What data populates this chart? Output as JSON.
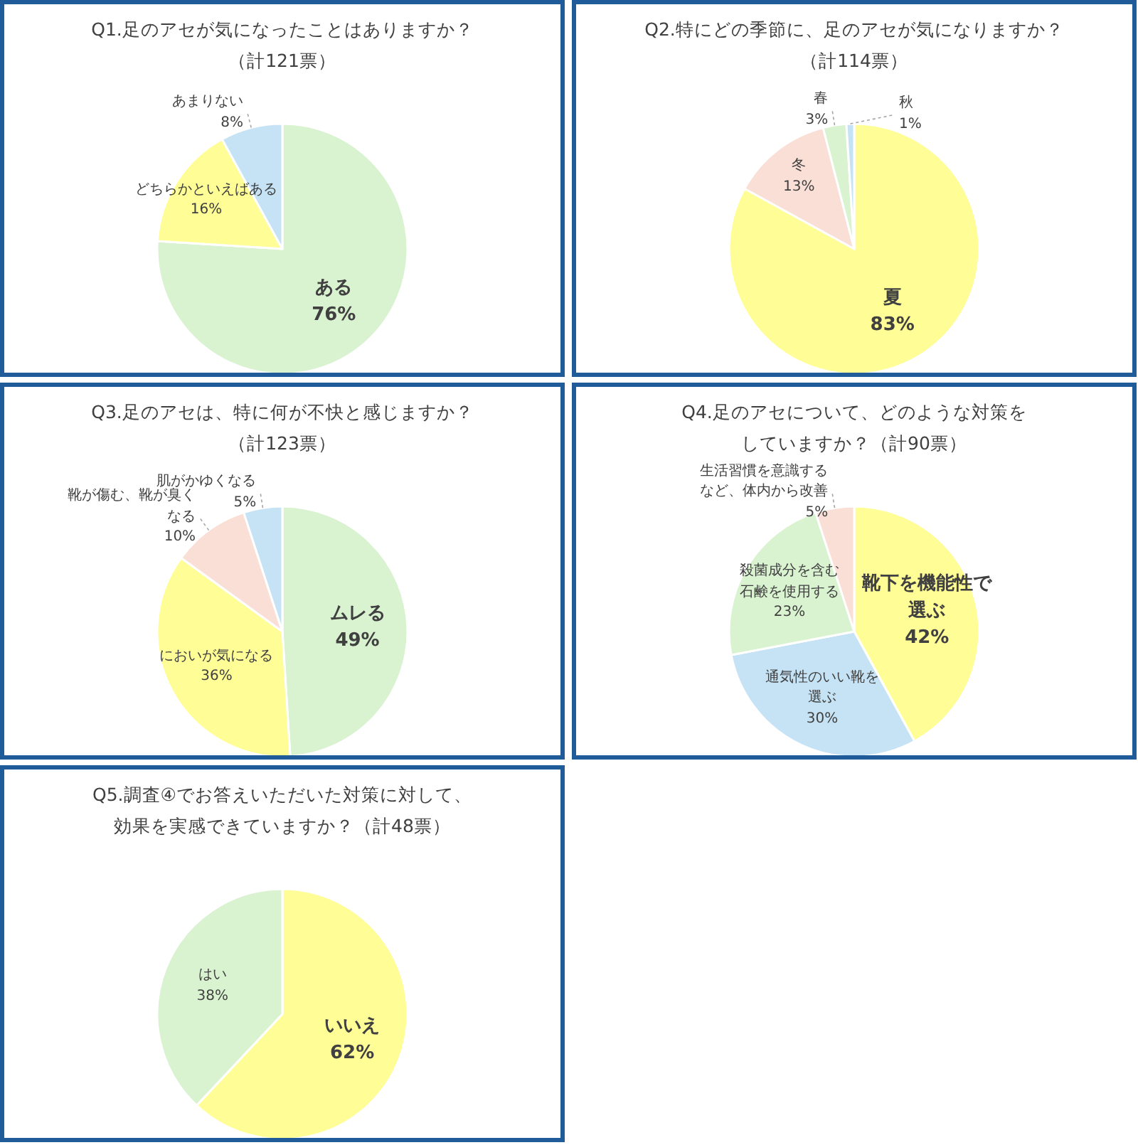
{
  "chart_data": [
    {
      "type": "pie",
      "title": "Q1.足のアセが気になったことはありますか？",
      "subtitle": "（計121票）",
      "categories": [
        "ある",
        "どちらかといえばある",
        "あまりない"
      ],
      "values": [
        76,
        16,
        8
      ],
      "value_labels": [
        "76%",
        "16%",
        "8%"
      ],
      "colors": [
        "#d9f2d0",
        "#fffd96",
        "#c5e3f5"
      ]
    },
    {
      "type": "pie",
      "title": "Q2.特にどの季節に、足のアセが気になりますか？",
      "subtitle": "（計114票）",
      "categories": [
        "夏",
        "冬",
        "春",
        "秋"
      ],
      "values": [
        83,
        13,
        3,
        1
      ],
      "value_labels": [
        "83%",
        "13%",
        "3%",
        "1%"
      ],
      "colors": [
        "#fffd96",
        "#f9dfd6",
        "#d9f2d0",
        "#c5e3f5"
      ]
    },
    {
      "type": "pie",
      "title": "Q3.足のアセは、特に何が不快と感じますか？",
      "subtitle": "（計123票）",
      "categories": [
        "ムレる",
        "においが気になる",
        "靴が傷む、靴が臭くなる",
        "肌がかゆくなる"
      ],
      "values": [
        49,
        36,
        10,
        5
      ],
      "value_labels": [
        "49%",
        "36%",
        "10%",
        "5%"
      ],
      "colors": [
        "#d9f2d0",
        "#fffd96",
        "#f9dfd6",
        "#c5e3f5"
      ]
    },
    {
      "type": "pie",
      "title": "Q4.足のアセについて、どのような対策を",
      "subtitle": "していますか？（計90票）",
      "categories": [
        "靴下を機能性で選ぶ",
        "通気性のいい靴を選ぶ",
        "殺菌成分を含む石鹸を使用する",
        "生活習慣を意識するなど、体内から改善"
      ],
      "values": [
        42,
        30,
        23,
        5
      ],
      "value_labels": [
        "42%",
        "30%",
        "23%",
        "5%"
      ],
      "colors": [
        "#fffd96",
        "#c5e3f5",
        "#d9f2d0",
        "#f9dfd6"
      ]
    },
    {
      "type": "pie",
      "title": "Q5.調査④でお答えいただいた対策に対して、",
      "subtitle": "効果を実感できていますか？（計48票）",
      "categories": [
        "いいえ",
        "はい"
      ],
      "values": [
        62,
        38
      ],
      "value_labels": [
        "62%",
        "38%"
      ],
      "colors": [
        "#fffd96",
        "#d9f2d0"
      ]
    }
  ]
}
